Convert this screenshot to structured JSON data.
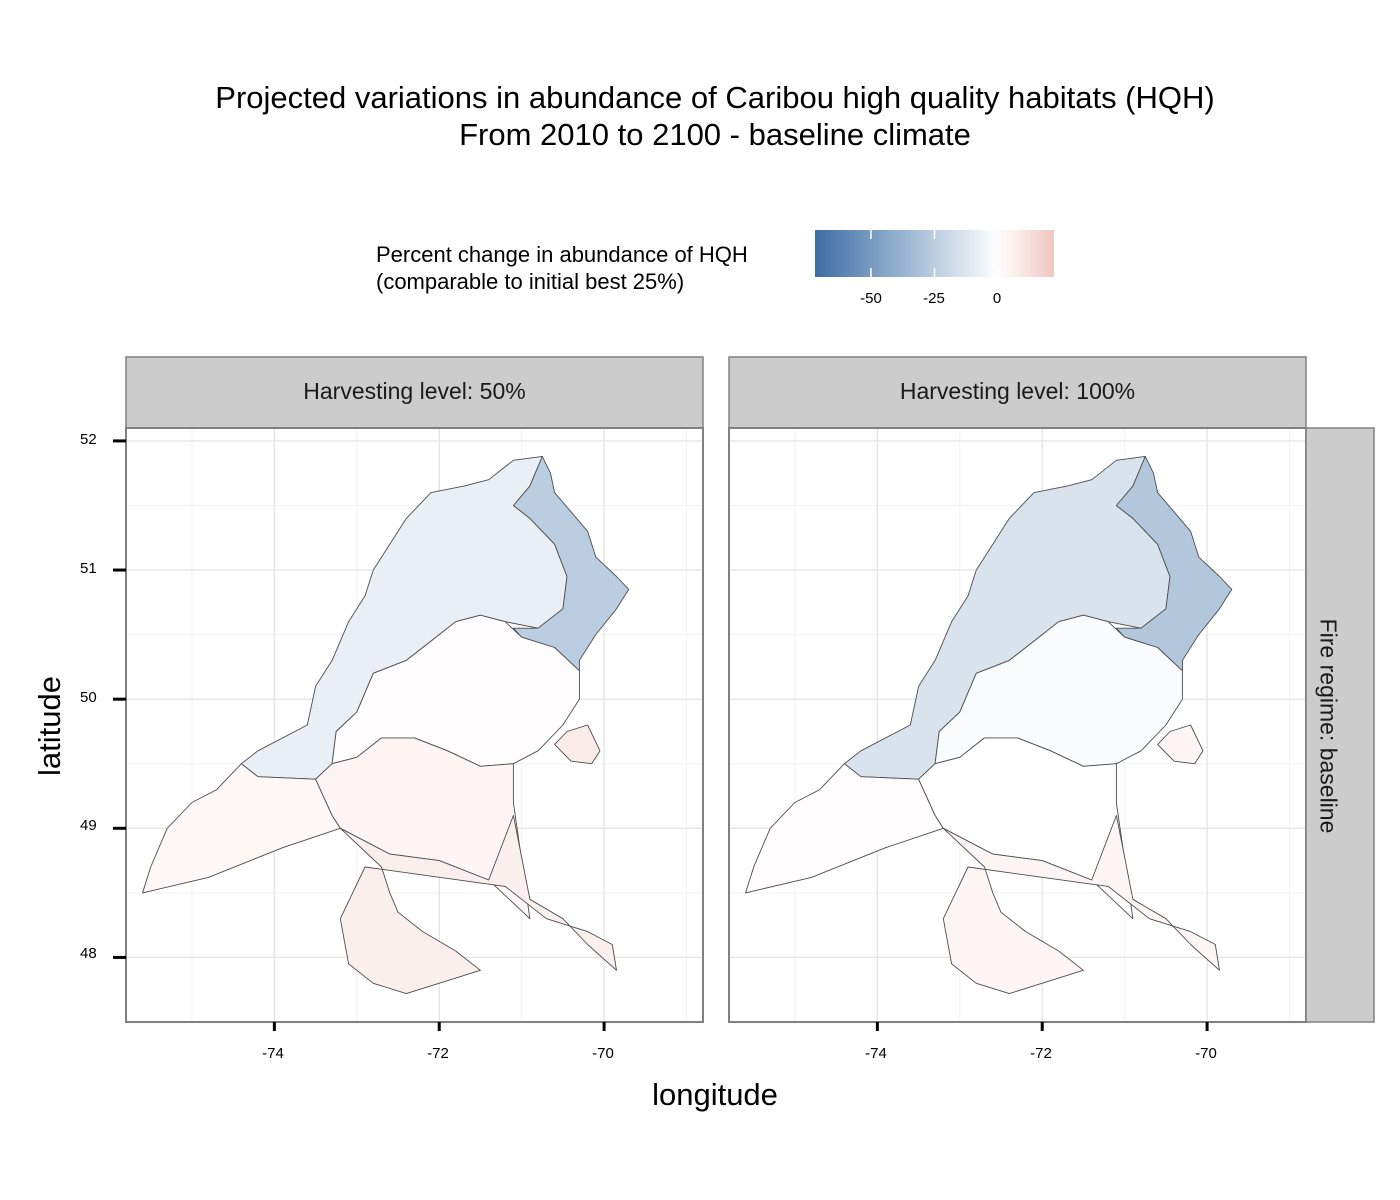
{
  "title": {
    "line1": "Projected variations in abundance of Caribou high quality habitats (HQH)",
    "line2": "From 2010 to 2100 - baseline climate"
  },
  "legend": {
    "title_line1": "Percent change in abundance of HQH",
    "title_line2": "(comparable to initial best 25%)",
    "ticks": [
      "-50",
      "-25",
      "0"
    ],
    "tick_values": [
      -50,
      -25,
      0
    ],
    "range": [
      -72,
      22
    ],
    "colors": {
      "low": "#3b6ea5",
      "mid": "#ffffff",
      "high": "#f1c6c0"
    }
  },
  "facets": {
    "columns": [
      "Harvesting level: 50%",
      "Harvesting level: 100%"
    ],
    "row": "Fire regime: baseline"
  },
  "axes": {
    "x_title": "longitude",
    "y_title": "latitude",
    "x_ticks": [
      "-74",
      "-72",
      "-70"
    ],
    "y_ticks": [
      "52",
      "51",
      "50",
      "49",
      "48"
    ]
  },
  "chart_data": {
    "type": "choropleth",
    "xlabel": "longitude",
    "ylabel": "latitude",
    "xlim": [
      -75.8,
      -68.8
    ],
    "ylim": [
      47.5,
      52.1
    ],
    "x_ticks": [
      -74,
      -72,
      -70
    ],
    "y_ticks": [
      48,
      49,
      50,
      51,
      52
    ],
    "grid": true,
    "legend_position": "top",
    "regions": [
      "north-central",
      "north-east",
      "central",
      "south-west",
      "south-central",
      "south-east",
      "small-east"
    ],
    "panels": [
      {
        "label": "Harvesting level: 50%",
        "values": {
          "north-central": -8,
          "north-east": -25,
          "central": 1,
          "south-west": 3,
          "south-central": 4,
          "south-east": 6,
          "small-east": 8
        }
      },
      {
        "label": "Harvesting level: 100%",
        "values": {
          "north-central": -14,
          "north-east": -28,
          "central": -2,
          "south-west": 1,
          "south-central": 0,
          "south-east": 4,
          "small-east": 4
        }
      }
    ]
  }
}
